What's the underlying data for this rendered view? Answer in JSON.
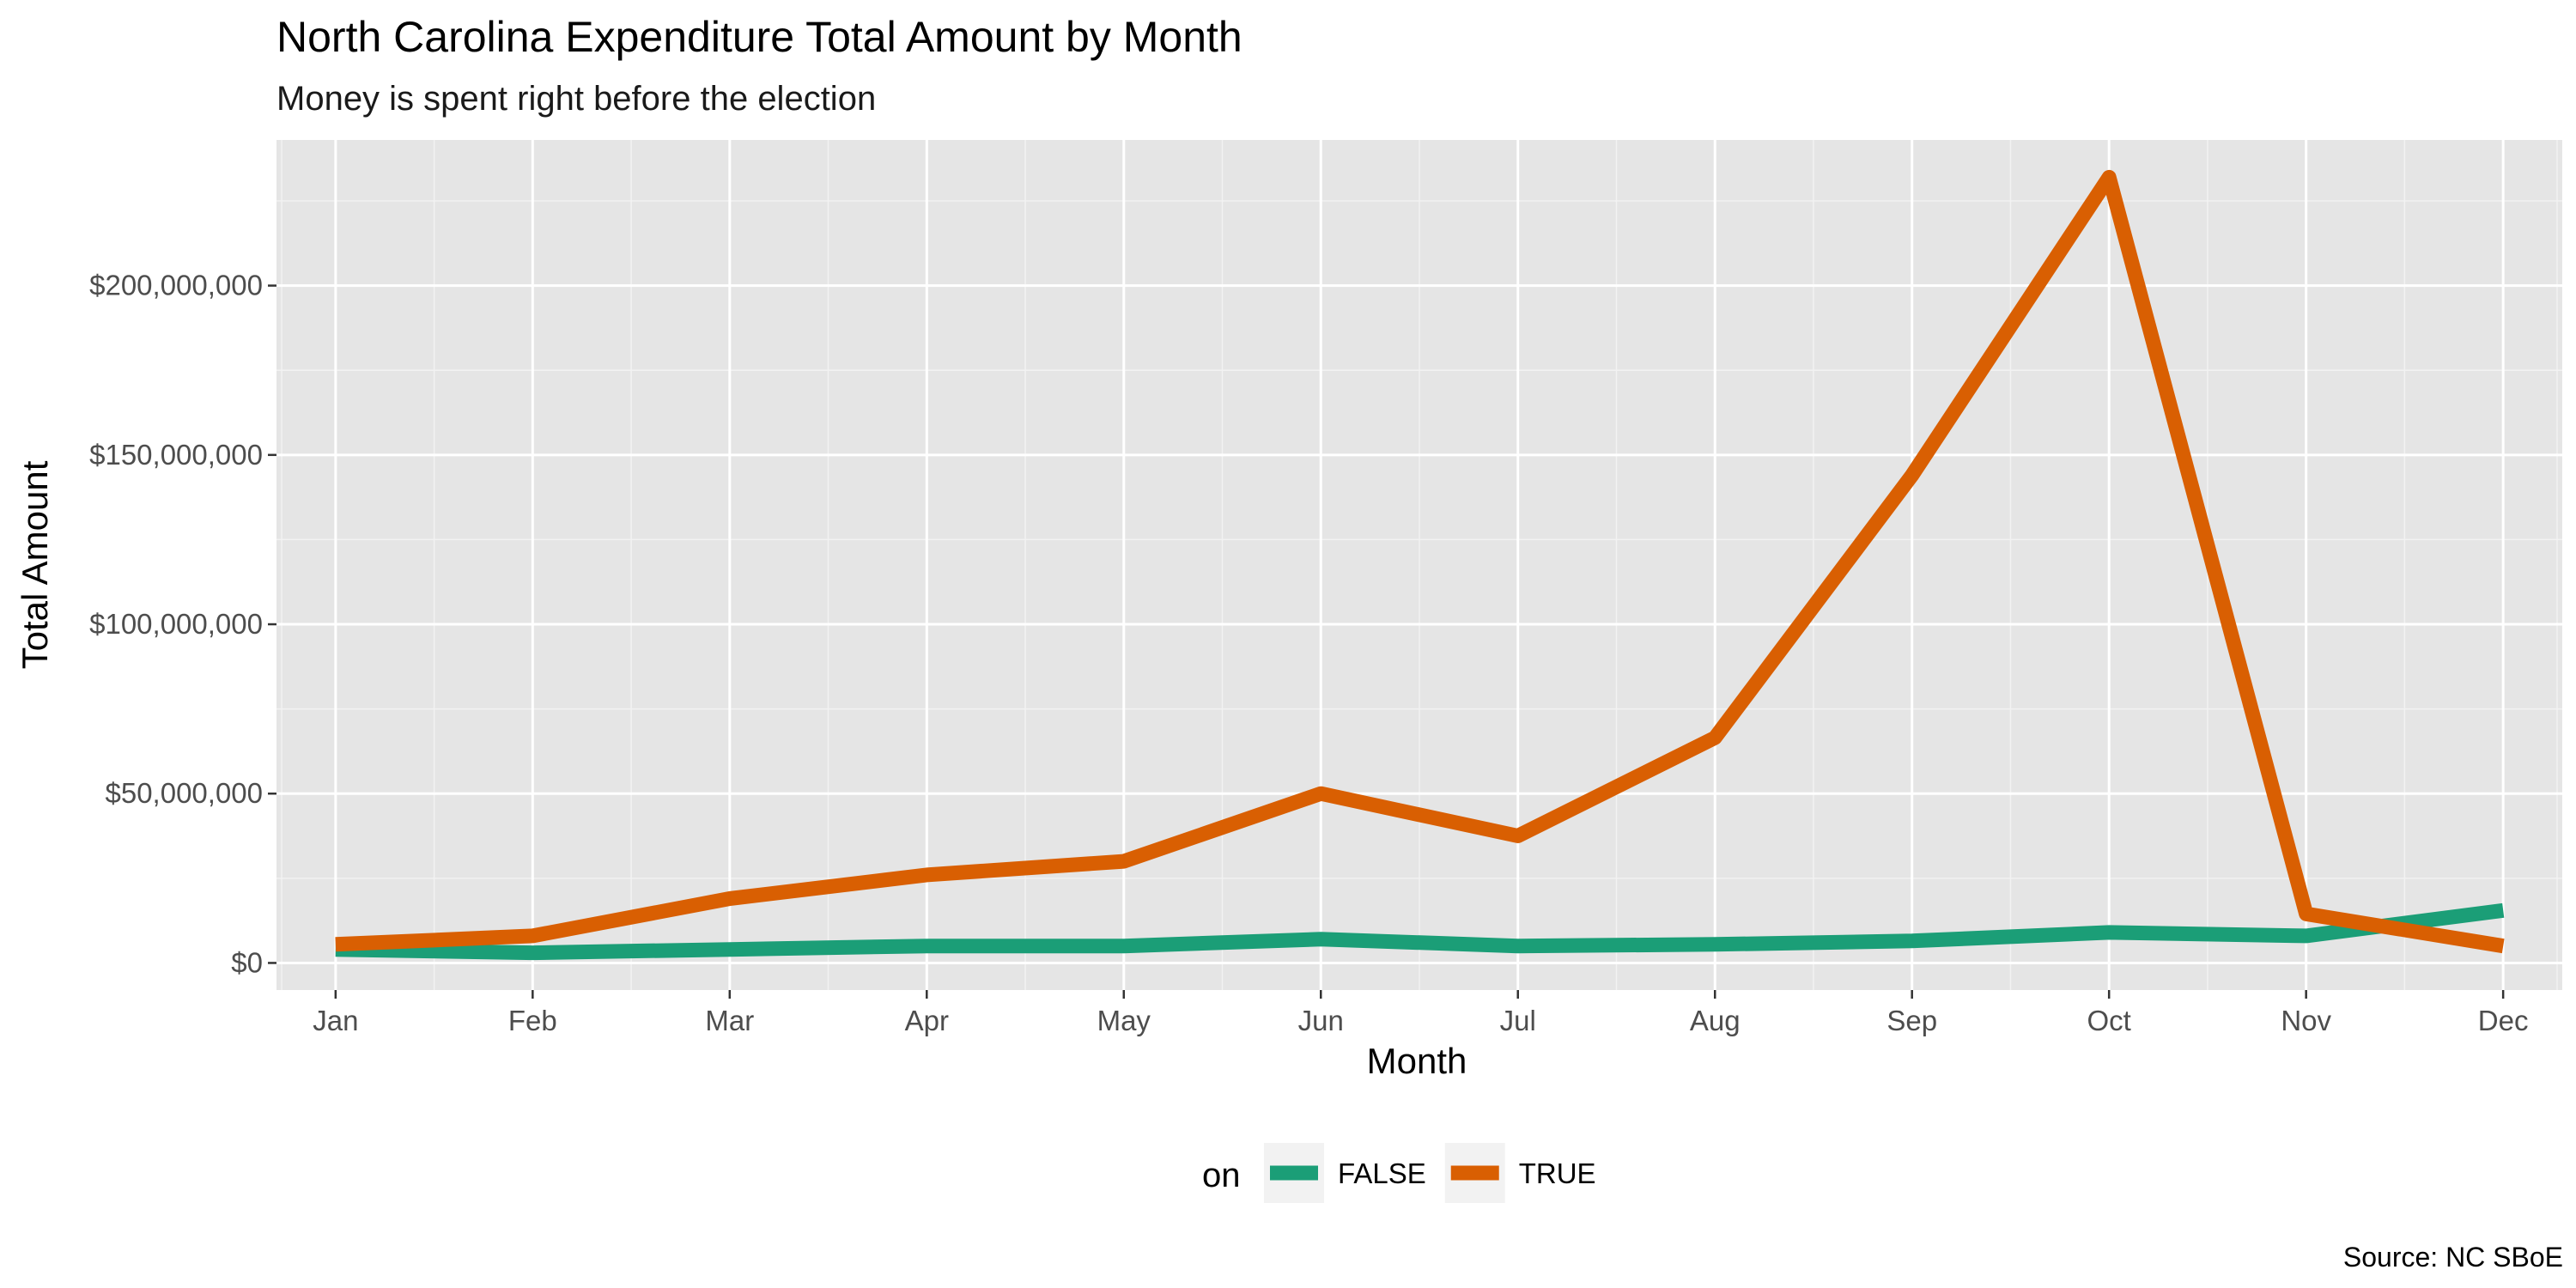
{
  "chart_data": {
    "type": "line",
    "title": "North Carolina Expenditure Total Amount by Month",
    "subtitle": "Money is spent right before the election",
    "xlabel": "Month",
    "ylabel": "Total Amount",
    "caption": "Source: NC SBoE",
    "categories": [
      "Jan",
      "Feb",
      "Mar",
      "Apr",
      "May",
      "Jun",
      "Jul",
      "Aug",
      "Sep",
      "Oct",
      "Nov",
      "Dec"
    ],
    "y_ticks": [
      0,
      50000000,
      100000000,
      150000000,
      200000000
    ],
    "y_tick_labels": [
      "$0",
      "$50,000,000",
      "$100,000,000",
      "$150,000,000",
      "$200,000,000"
    ],
    "ylim": [
      -8000000,
      243000000
    ],
    "grid": true,
    "legend_title": "on",
    "legend_position": "bottom",
    "series": [
      {
        "name": "FALSE",
        "color": "#1b9e77",
        "values": [
          4000000,
          3000000,
          4000000,
          5000000,
          5000000,
          7000000,
          5000000,
          5500000,
          6500000,
          9000000,
          8000000,
          15500000
        ]
      },
      {
        "name": "TRUE",
        "color": "#d95f02",
        "values": [
          5500000,
          8000000,
          19000000,
          26000000,
          30000000,
          50000000,
          37500000,
          66500000,
          144000000,
          232000000,
          14500000,
          5000000
        ]
      }
    ]
  }
}
